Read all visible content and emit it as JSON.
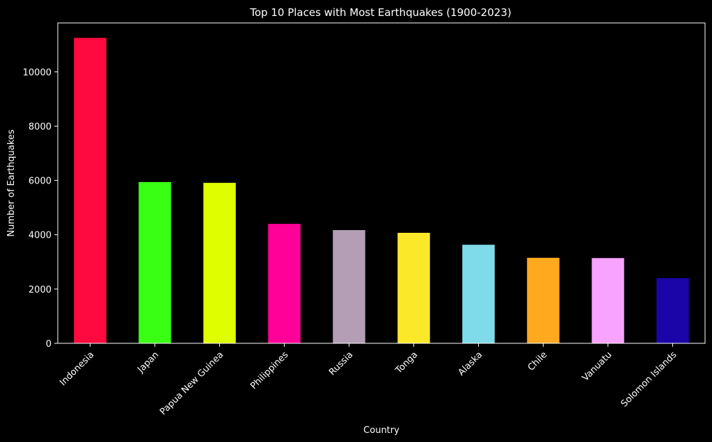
{
  "chart_data": {
    "type": "bar",
    "title": "Top 10 Places with Most Earthquakes (1900-2023)",
    "xlabel": "Country",
    "ylabel": "Number of Earthquakes",
    "categories": [
      "Indonesia",
      "Japan",
      "Papua New Guinea",
      "Philippines",
      "Russia",
      "Tonga",
      "Alaska",
      "Chile",
      "Vanuatu",
      "Solomon Islands"
    ],
    "values": [
      11250,
      5940,
      5910,
      4400,
      4170,
      4070,
      3630,
      3150,
      3140,
      2400
    ],
    "colors": [
      "#ff0a40",
      "#39ff14",
      "#dfff00",
      "#ff0098",
      "#b39eb5",
      "#fbe929",
      "#7fdbea",
      "#ffa91f",
      "#f7a3ff",
      "#1c05a8"
    ],
    "ylim": [
      0,
      11800
    ],
    "yticks": [
      0,
      2000,
      4000,
      6000,
      8000,
      10000
    ],
    "grid": false,
    "legend": "none",
    "background": "#000000",
    "foreground": "#ffffff"
  }
}
